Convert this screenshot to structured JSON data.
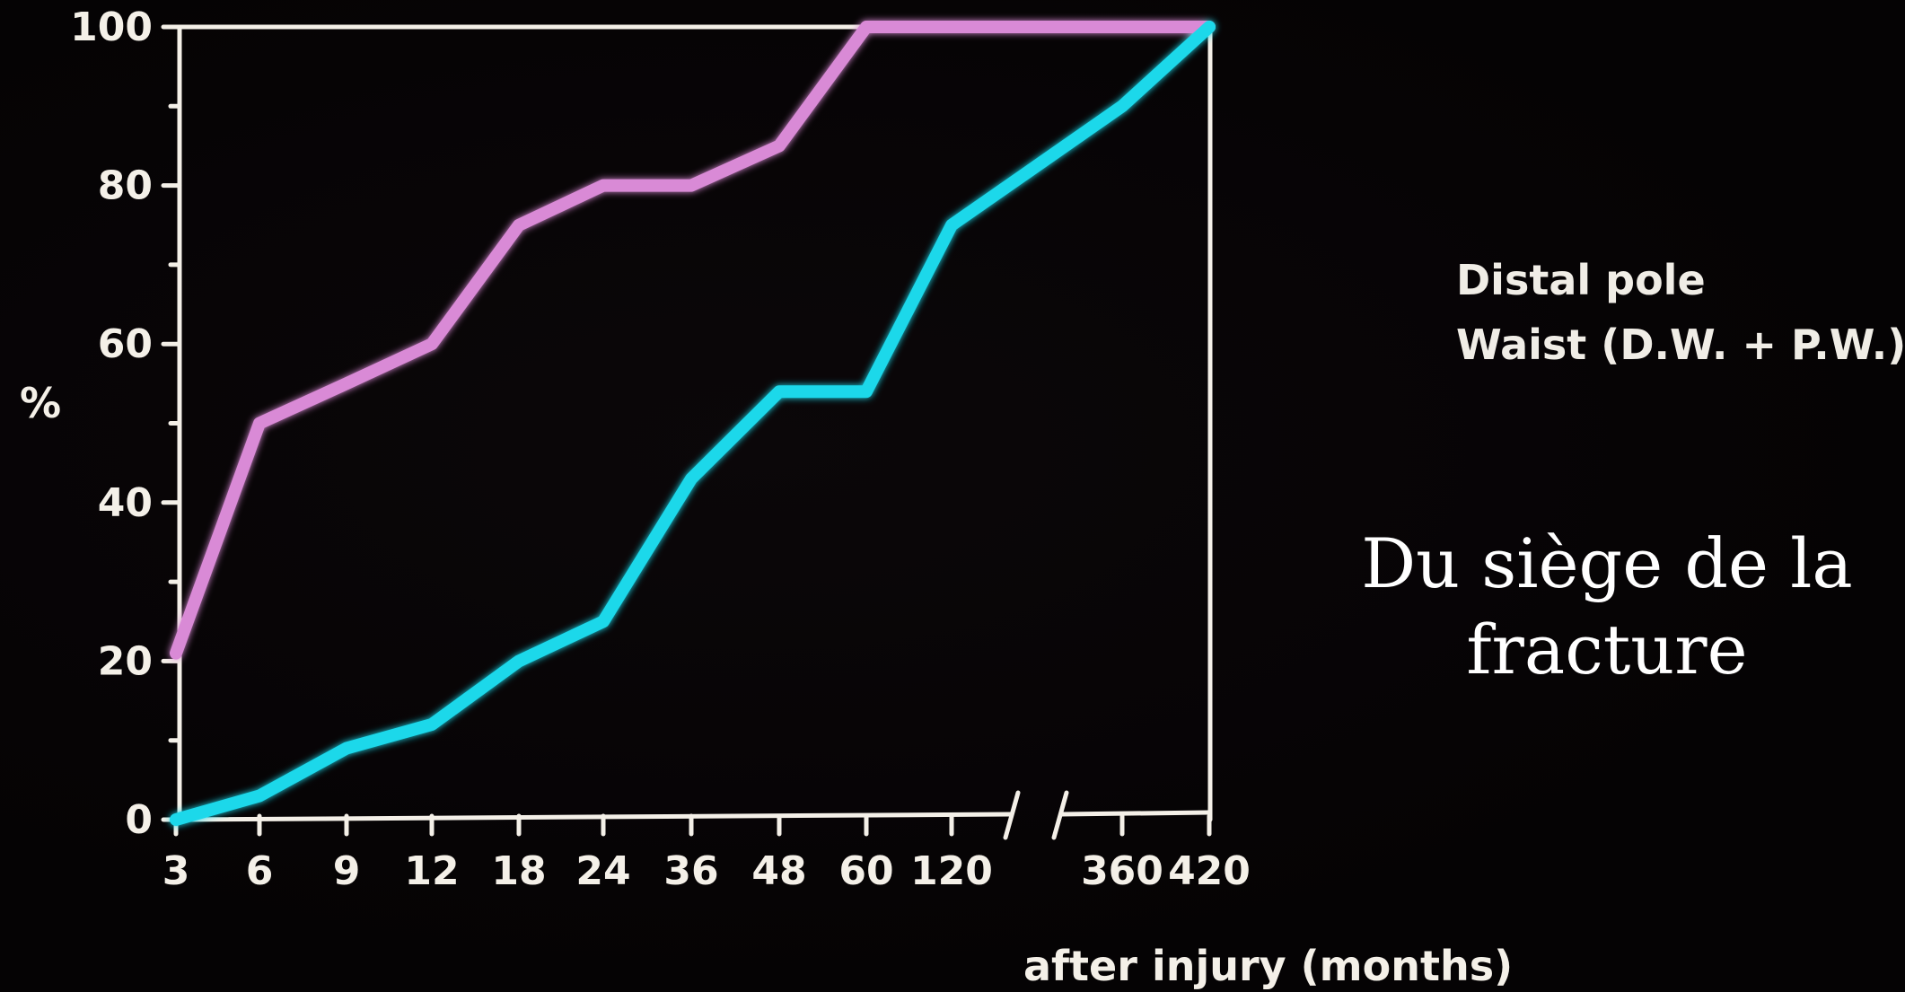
{
  "chart_data": {
    "type": "line",
    "title": "",
    "ylabel": "%",
    "xlabel": "after injury (months)",
    "ylim": [
      0,
      100
    ],
    "yticks": [
      0,
      20,
      40,
      60,
      80,
      100
    ],
    "x_categories": [
      "3",
      "6",
      "9",
      "12",
      "18",
      "24",
      "36",
      "48",
      "60",
      "120",
      "360",
      "420"
    ],
    "axis_break_between": [
      "120",
      "360"
    ],
    "grid": false,
    "legend_position": "right",
    "series": [
      {
        "name": "Distal pole",
        "color": "#d98ad6",
        "x": [
          "3",
          "6",
          "9",
          "12",
          "18",
          "24",
          "36",
          "48",
          "60",
          "120",
          "360",
          "420"
        ],
        "values": [
          21,
          50,
          55,
          60,
          75,
          80,
          80,
          85,
          100,
          100,
          100,
          100
        ]
      },
      {
        "name": "Waist  (D.W. + P.W.)",
        "color": "#1ad8ea",
        "x": [
          "3",
          "6",
          "9",
          "12",
          "18",
          "24",
          "36",
          "48",
          "60",
          "120",
          "360",
          "420"
        ],
        "values": [
          0,
          3,
          9,
          12,
          20,
          25,
          43,
          54,
          54,
          75,
          90,
          100
        ]
      }
    ]
  },
  "caption": {
    "line1": "Du siège de la",
    "line2": "fracture"
  }
}
